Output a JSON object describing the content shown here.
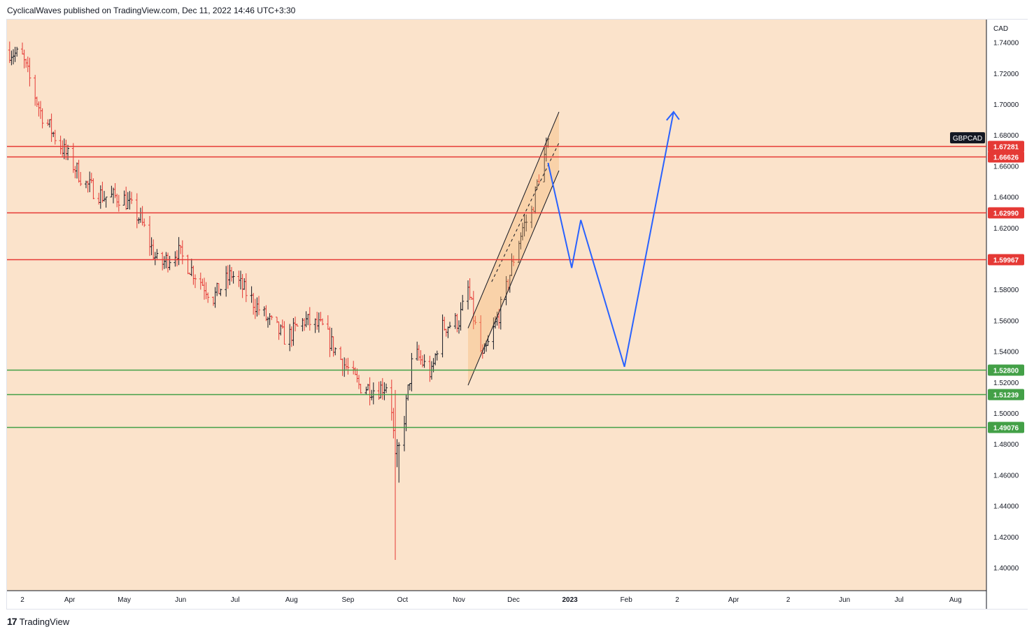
{
  "header": {
    "text": "CyclicalWaves published on TradingView.com, Dec 11, 2022 14:46 UTC+3:30"
  },
  "footer": {
    "logo": "17",
    "brand": "TradingView"
  },
  "colors": {
    "background": "#fbe3cb",
    "up": "#131722",
    "down": "#e53935",
    "resistance": "#e53935",
    "support": "#43a047",
    "projection": "#2962ff",
    "channel": "#131722"
  },
  "chart_data": {
    "type": "ohlc",
    "symbol": "GBPCAD",
    "currency": "CAD",
    "y_axis": {
      "range": [
        1.38,
        1.755
      ],
      "ticks": [
        "1.74000",
        "1.72000",
        "1.70000",
        "1.68000",
        "1.66000",
        "1.64000",
        "1.62000",
        "1.60000",
        "1.58000",
        "1.56000",
        "1.54000",
        "1.52000",
        "1.50000",
        "1.48000",
        "1.46000",
        "1.44000",
        "1.42000",
        "1.40000"
      ]
    },
    "x_axis": {
      "labels": [
        {
          "text": "2",
          "day": 0
        },
        {
          "text": "Apr",
          "day": 26
        },
        {
          "text": "May",
          "day": 56
        },
        {
          "text": "Jun",
          "day": 87
        },
        {
          "text": "Jul",
          "day": 117
        },
        {
          "text": "Aug",
          "day": 148
        },
        {
          "text": "Sep",
          "day": 179
        },
        {
          "text": "Oct",
          "day": 209
        },
        {
          "text": "Nov",
          "day": 240
        },
        {
          "text": "Dec",
          "day": 270
        },
        {
          "text": "2023",
          "day": 301
        },
        {
          "text": "Feb",
          "day": 332
        },
        {
          "text": "2",
          "day": 360
        },
        {
          "text": "Apr",
          "day": 391
        },
        {
          "text": "2",
          "day": 421
        },
        {
          "text": "Jun",
          "day": 452
        },
        {
          "text": "Jul",
          "day": 482
        },
        {
          "text": "Aug",
          "day": 513
        }
      ]
    },
    "price_path": [
      [
        -8,
        1.735
      ],
      [
        0,
        1.73
      ],
      [
        10,
        1.695
      ],
      [
        20,
        1.675
      ],
      [
        35,
        1.648
      ],
      [
        45,
        1.64
      ],
      [
        55,
        1.64
      ],
      [
        65,
        1.625
      ],
      [
        75,
        1.595
      ],
      [
        85,
        1.605
      ],
      [
        95,
        1.59
      ],
      [
        105,
        1.575
      ],
      [
        115,
        1.59
      ],
      [
        125,
        1.575
      ],
      [
        135,
        1.56
      ],
      [
        145,
        1.548
      ],
      [
        155,
        1.56
      ],
      [
        165,
        1.555
      ],
      [
        175,
        1.535
      ],
      [
        185,
        1.518
      ],
      [
        195,
        1.515
      ],
      [
        202,
        1.52
      ],
      [
        205,
        1.47
      ],
      [
        208,
        1.48
      ],
      [
        215,
        1.54
      ],
      [
        225,
        1.525
      ],
      [
        230,
        1.555
      ],
      [
        240,
        1.56
      ],
      [
        245,
        1.58
      ],
      [
        250,
        1.55
      ],
      [
        253,
        1.535
      ],
      [
        258,
        1.55
      ],
      [
        265,
        1.575
      ],
      [
        270,
        1.6
      ],
      [
        275,
        1.62
      ],
      [
        280,
        1.63
      ],
      [
        285,
        1.66
      ],
      [
        289,
        1.672
      ]
    ],
    "horizontal_levels": [
      {
        "value": 1.6728,
        "label": "1.67281",
        "color": "#e53935"
      },
      {
        "value": 1.66626,
        "label": "1.66626",
        "color": "#e53935"
      },
      {
        "value": 1.6299,
        "label": "1.62990",
        "color": "#e53935"
      },
      {
        "value": 1.59967,
        "label": "1.59967",
        "color": "#e53935"
      },
      {
        "value": 1.528,
        "label": "1.52800",
        "color": "#43a047"
      },
      {
        "value": 1.51239,
        "label": "1.51239",
        "color": "#43a047"
      },
      {
        "value": 1.49076,
        "label": "1.49076",
        "color": "#43a047"
      }
    ],
    "channel": {
      "upper": [
        [
          245,
          1.555
        ],
        [
          295,
          1.695
        ]
      ],
      "lower": [
        [
          245,
          1.518
        ],
        [
          295,
          1.657
        ]
      ],
      "mid_dashed": [
        [
          258,
          1.585
        ],
        [
          295,
          1.675
        ]
      ]
    },
    "projection_path": [
      [
        289,
        1.662
      ],
      [
        302,
        1.594
      ],
      [
        307,
        1.625
      ],
      [
        331,
        1.53
      ],
      [
        358,
        1.695
      ]
    ]
  }
}
